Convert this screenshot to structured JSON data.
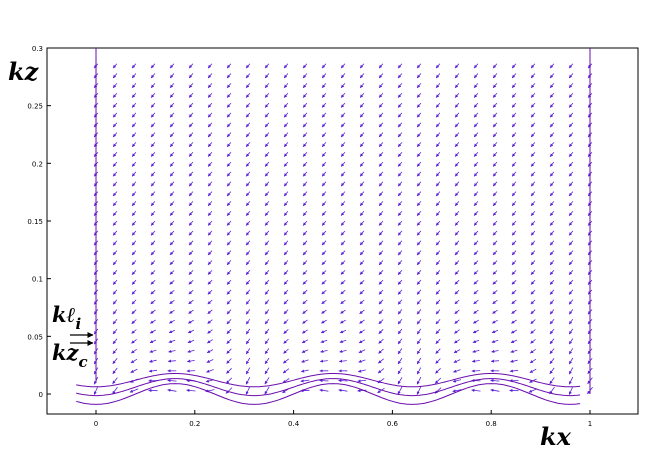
{
  "chart_data": {
    "type": "quiver",
    "title": "",
    "xlabel": "kx",
    "ylabel": "kz",
    "xlim": [
      -0.1,
      1.1
    ],
    "ylim": [
      -0.02,
      0.3
    ],
    "x_ticks": [
      "0",
      "0.2",
      "0.4",
      "0.6",
      "0.8",
      "1"
    ],
    "y_ticks": [
      "0",
      "0.05",
      "0.1",
      "0.15",
      "0.2",
      "0.25",
      "0.3"
    ],
    "grid": false,
    "series": [
      {
        "kind": "vector-field",
        "color": "#5a1fd6",
        "description": "velocity arrows; mostly pointing down-left in the bulk, swirling near the wavy bottom"
      }
    ],
    "curves": [
      {
        "kind": "boundary",
        "color": "#6a0dad",
        "x": [
          0,
          1
        ],
        "z_top": 0.3
      },
      {
        "kind": "wavy-streamlines",
        "color": "#6a0dad",
        "z_levels": [
          0.0,
          0.006,
          0.012
        ],
        "x_range": [
          -0.04,
          0.98
        ],
        "amplitude": 0.009,
        "period": 0.32
      }
    ],
    "annotations": [
      {
        "label": "kℓ",
        "subscript": "i",
        "z": 0.048
      },
      {
        "label": "kz",
        "subscript": "c",
        "z": 0.04
      }
    ]
  }
}
